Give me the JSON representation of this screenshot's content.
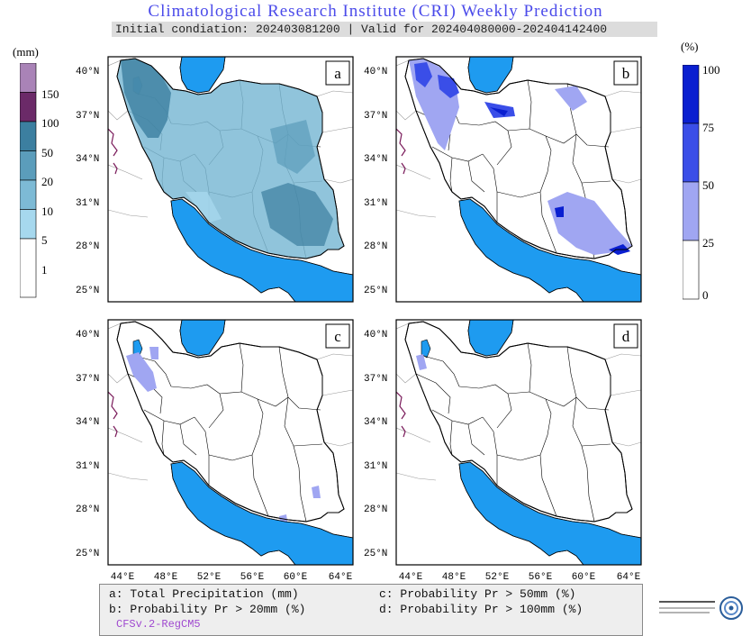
{
  "header": {
    "title": "Climatological Research Institute (CRI) Weekly Prediction",
    "subtitle": "Initial condiation: 202403081200 | Valid for 202404080000-202404142400"
  },
  "left_colorbar": {
    "unit": "(mm)",
    "labels": [
      "150",
      "100",
      "50",
      "20",
      "10",
      "5",
      "1"
    ],
    "colors": [
      "#a983b7",
      "#6b2a68",
      "#3c7fa0",
      "#5b9dbb",
      "#7dbad5",
      "#a6d8ee",
      "#ffffff"
    ]
  },
  "right_colorbar": {
    "unit": "(%)",
    "labels": [
      "100",
      "75",
      "50",
      "25",
      "0"
    ],
    "colors": [
      "#0a1fd0",
      "#3a4ee8",
      "#a0a6f2",
      "#ffffff"
    ]
  },
  "panels": {
    "a": {
      "letter": "a"
    },
    "b": {
      "letter": "b"
    },
    "c": {
      "letter": "c"
    },
    "d": {
      "letter": "d"
    },
    "lat_labels": [
      "40°N",
      "37°N",
      "34°N",
      "31°N",
      "28°N",
      "25°N"
    ],
    "lon_labels": [
      "44°E",
      "48°E",
      "52°E",
      "56°E",
      "60°E",
      "64°E"
    ]
  },
  "legend": {
    "a": "a: Total Precipitation (mm)",
    "b": "b: Probability Pr > 20mm (%)",
    "c": "c: Probability Pr > 50mm (%)",
    "d": "d: Probability Pr > 100mm (%)",
    "model": "CFSv.2-RegCM5"
  },
  "colors": {
    "sea": "#1e9bf0",
    "title": "#4b4bea",
    "model": "#a04ad0"
  }
}
